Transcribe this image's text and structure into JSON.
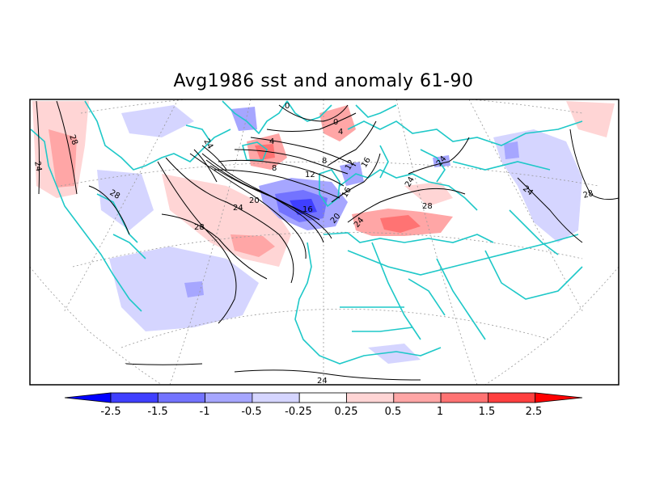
{
  "title": "Avg1986 sst and anomaly 61-90",
  "contour_labels": [
    "24",
    "28",
    "28",
    "28",
    "24",
    "20",
    "16",
    "12",
    "8",
    "4",
    "0",
    "0",
    "4",
    "8",
    "12",
    "16",
    "16",
    "20",
    "24",
    "24",
    "24",
    "28",
    "24",
    "24",
    "28",
    "24"
  ],
  "colorbar": {
    "colors": [
      "#0000ff",
      "#3f3fff",
      "#7373ff",
      "#a6a6ff",
      "#d5d5ff",
      "#ffffff",
      "#ffd5d5",
      "#ffa6a6",
      "#ff7373",
      "#ff3f3f",
      "#ff0000"
    ],
    "tick_labels": [
      "-2.5",
      "-1.5",
      "-1",
      "-0.5",
      "-0.25",
      "0.25",
      "0.5",
      "1",
      "1.5",
      "2.5"
    ]
  },
  "colors": {
    "coast": "#1ec8c8",
    "contour": "#000000",
    "grid": "#999999"
  }
}
